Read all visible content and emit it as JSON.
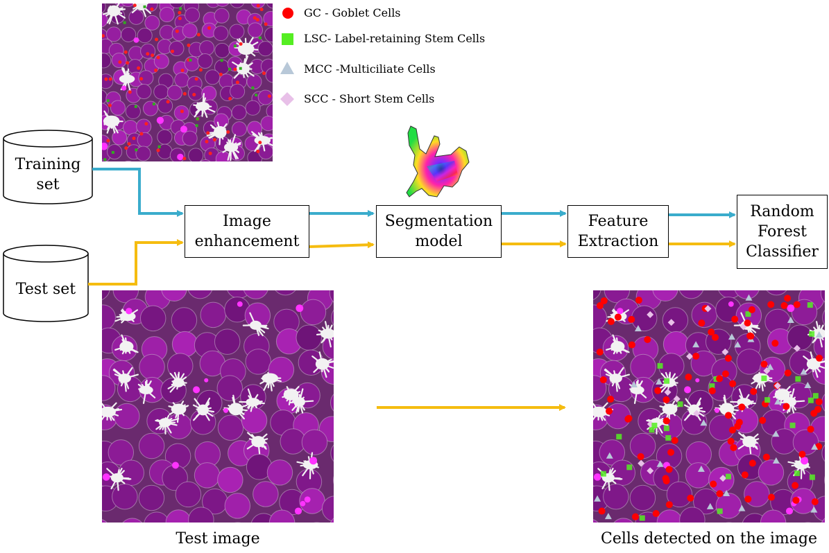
{
  "legend": {
    "gc": {
      "label": "GC - Goblet Cells",
      "color": "#ff0000",
      "icon": "circle-icon"
    },
    "lsc": {
      "label": "LSC- Label-retaining Stem Cells",
      "color": "#55ee22",
      "icon": "square-icon"
    },
    "mcc": {
      "label": "MCC -Multiciliate Cells",
      "color": "#b8c8d8",
      "icon": "triangle-icon"
    },
    "scc": {
      "label": "SCC - Short Stem Cells",
      "color": "#e8c0e8",
      "icon": "diamond-icon"
    }
  },
  "inputs": {
    "training": {
      "line1": "Training",
      "line2": "set"
    },
    "test": {
      "line1": "Test set"
    }
  },
  "pipeline": {
    "enhancement": {
      "line1": "Image",
      "line2": "enhancement"
    },
    "segmentation": {
      "line1": "Segmentation",
      "line2": "model"
    },
    "feature": {
      "line1": "Feature",
      "line2": "Extraction"
    },
    "classifier": {
      "line1": "Random",
      "line2": "Forest",
      "line3": "Classifier"
    }
  },
  "captions": {
    "test_image": "Test image",
    "detected": "Cells detected on the image"
  },
  "colors": {
    "train_arrow": "#3aaccc",
    "test_arrow": "#f5bc10",
    "tissue": "#6a2a6e",
    "membrane": "#c9b3cc",
    "cilia": "#f2f2f2",
    "magenta": "#ff33ff"
  }
}
